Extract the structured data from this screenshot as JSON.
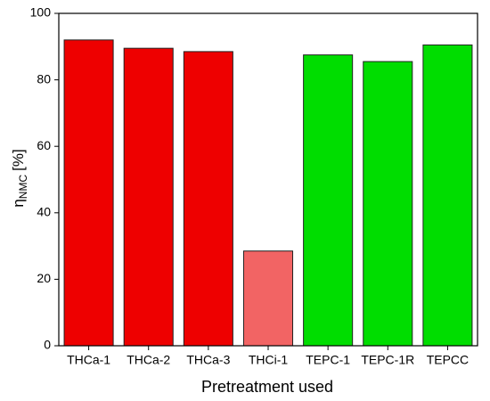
{
  "chart_data": {
    "type": "bar",
    "xlabel": "Pretreatment used",
    "ylabel": {
      "symbol": "η",
      "subscript": "NMC",
      "unit": "[%]"
    },
    "categories": [
      "THCa-1",
      "THCa-2",
      "THCa-3",
      "THCi-1",
      "TEPC-1",
      "TEPC-1R",
      "TEPCC"
    ],
    "values": [
      92,
      89.5,
      88.5,
      28.5,
      87.5,
      85.5,
      90.5
    ],
    "colors": [
      "#ee0000",
      "#ee0000",
      "#ee0000",
      "#f26464",
      "#00dd00",
      "#00dd00",
      "#00dd00"
    ],
    "ylim": [
      0,
      100
    ],
    "yticks": [
      0,
      20,
      40,
      60,
      80,
      100
    ]
  }
}
